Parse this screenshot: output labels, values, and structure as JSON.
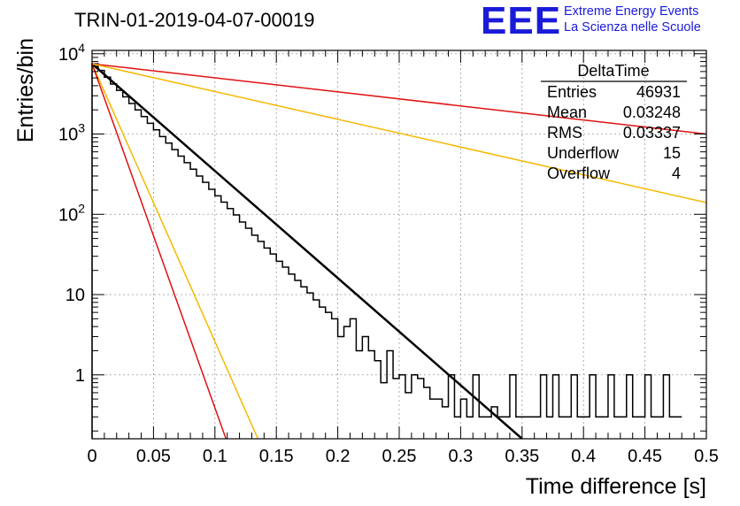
{
  "title": "TRIN-01-2019-04-07-00019",
  "logo": {
    "mark": "EEE",
    "line1": "Extreme Energy Events",
    "line2": "La Scienza nelle Scuole",
    "color": "#1a1ad8"
  },
  "stats_box": {
    "title": "DeltaTime",
    "rows": [
      {
        "label": "Entries",
        "value": "46931"
      },
      {
        "label": "Mean",
        "value": "0.03248"
      },
      {
        "label": "RMS",
        "value": "0.03337"
      },
      {
        "label": "Underflow",
        "value": "15"
      },
      {
        "label": "Overflow",
        "value": "4"
      }
    ]
  },
  "chart_data": {
    "type": "histogram",
    "xlabel": "Time difference [s]",
    "ylabel": "Entries/bin",
    "xlim": [
      0,
      0.5
    ],
    "ylim": [
      0.16,
      11000
    ],
    "y_scale": "log",
    "grid": true,
    "x_ticks": [
      "0",
      "0.05",
      "0.1",
      "0.15",
      "0.2",
      "0.25",
      "0.3",
      "0.35",
      "0.4",
      "0.45",
      "0.5"
    ],
    "y_ticks": [
      "1",
      "10",
      "10^2",
      "10^3",
      "10^4"
    ],
    "bin_width": 0.005,
    "bin_edges_start": 0,
    "counts": [
      7500,
      6200,
      5100,
      4200,
      3500,
      2900,
      2400,
      2000,
      1650,
      1360,
      1130,
      930,
      770,
      640,
      530,
      440,
      365,
      300,
      250,
      205,
      170,
      142,
      118,
      98,
      80,
      67,
      55,
      46,
      38,
      32,
      26,
      22,
      18,
      15,
      12.5,
      10.5,
      8.6,
      7,
      6,
      5,
      3,
      4,
      5,
      2,
      3,
      2,
      1.5,
      0.8,
      2,
      0.9,
      1,
      0.6,
      1,
      0.9,
      0.7,
      0.5,
      0.5,
      0.4,
      1,
      0.3,
      0.5,
      0.3,
      1,
      0.3,
      0.3,
      0.4,
      0.3,
      0.3,
      1,
      0.3,
      0.3,
      0.3,
      0.3,
      1,
      0.3,
      1,
      0.3,
      0.3,
      1,
      0.3,
      0.3,
      1,
      0.3,
      0.3,
      1,
      0.3,
      0.3,
      1,
      0.3,
      0.3,
      1,
      0.3,
      0.3,
      1,
      0.3,
      0.3
    ],
    "series": [
      {
        "color": "#000000",
        "x": [
          0,
          0.35
        ],
        "y": [
          7500,
          0.16
        ],
        "line_width": 2.5
      },
      {
        "color": "#e01010",
        "x": [
          0,
          0.5
        ],
        "y": [
          7500,
          1000
        ],
        "line_width": 1.5
      },
      {
        "color": "#f5b800",
        "x": [
          0,
          0.5
        ],
        "y": [
          7500,
          140
        ],
        "line_width": 1.5
      },
      {
        "color": "#f5b800",
        "x": [
          0,
          0.135
        ],
        "y": [
          7500,
          0.16
        ],
        "line_width": 1.5
      },
      {
        "color": "#e01010",
        "x": [
          0,
          0.109
        ],
        "y": [
          7500,
          0.16
        ],
        "line_width": 1.5
      }
    ]
  }
}
